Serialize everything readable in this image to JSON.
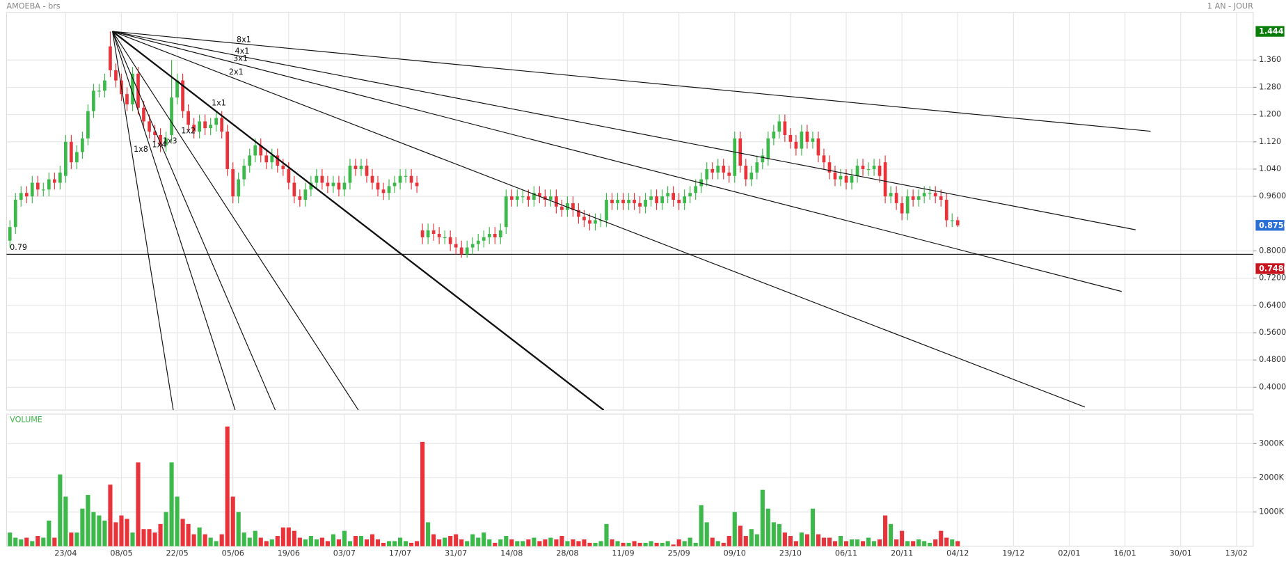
{
  "chart_data": {
    "type": "candlestick",
    "title": "AMOEBA - brs",
    "period": "1 AN - JOUR",
    "up_color": "#3cb94a",
    "down_color": "#e8333a",
    "xlim": [
      -0.6,
      223
    ],
    "xticks": [
      {
        "value": 10,
        "label": "23/04"
      },
      {
        "value": 20,
        "label": "08/05"
      },
      {
        "value": 30,
        "label": "22/05"
      },
      {
        "value": 40,
        "label": "05/06"
      },
      {
        "value": 50,
        "label": "19/06"
      },
      {
        "value": 60,
        "label": "03/07"
      },
      {
        "value": 70,
        "label": "17/07"
      },
      {
        "value": 80,
        "label": "31/07"
      },
      {
        "value": 90,
        "label": "14/08"
      },
      {
        "value": 100,
        "label": "28/08"
      },
      {
        "value": 110,
        "label": "11/09"
      },
      {
        "value": 120,
        "label": "25/09"
      },
      {
        "value": 130,
        "label": "09/10"
      },
      {
        "value": 140,
        "label": "23/10"
      },
      {
        "value": 150,
        "label": "06/11"
      },
      {
        "value": 160,
        "label": "20/11"
      },
      {
        "value": 170,
        "label": "04/12"
      },
      {
        "value": 180,
        "label": "19/12"
      },
      {
        "value": 190,
        "label": "02/01"
      },
      {
        "value": 200,
        "label": "16/01"
      },
      {
        "value": 210,
        "label": "30/01"
      },
      {
        "value": 220,
        "label": "13/02"
      }
    ],
    "ylim": [
      0.333,
      1.5
    ],
    "yticks": [
      {
        "value": 1.36,
        "label": "1.360"
      },
      {
        "value": 1.28,
        "label": "1.280"
      },
      {
        "value": 1.2,
        "label": "1.200"
      },
      {
        "value": 1.12,
        "label": "1.120"
      },
      {
        "value": 1.04,
        "label": "1.040"
      },
      {
        "value": 0.96,
        "label": "0.9600"
      },
      {
        "value": 0.8,
        "label": "0.8000"
      },
      {
        "value": 0.72,
        "label": "0.7200"
      },
      {
        "value": 0.64,
        "label": "0.6400"
      },
      {
        "value": 0.56,
        "label": "0.5600"
      },
      {
        "value": 0.48,
        "label": "0.4800"
      },
      {
        "value": 0.4,
        "label": "0.4000"
      }
    ],
    "grid": true,
    "open": [
      0.83,
      0.87,
      0.95,
      0.97,
      0.96,
      1.0,
      0.98,
      0.98,
      1.01,
      1.0,
      1.02,
      1.12,
      1.06,
      1.09,
      1.13,
      1.21,
      1.27,
      1.27,
      1.4,
      1.33,
      1.3,
      1.26,
      1.23,
      1.32,
      1.22,
      1.18,
      1.15,
      1.14,
      1.11,
      1.14,
      1.25,
      1.3,
      1.21,
      1.17,
      1.15,
      1.18,
      1.16,
      1.17,
      1.19,
      1.15,
      1.04,
      0.96,
      1.01,
      1.05,
      1.08,
      1.11,
      1.08,
      1.06,
      1.08,
      1.05,
      1.04,
      1.0,
      0.96,
      0.95,
      0.98,
      1.0,
      1.02,
      1.0,
      0.99,
      1.0,
      0.98,
      1.0,
      1.05,
      1.04,
      1.05,
      1.02,
      1.0,
      0.98,
      0.97,
      0.99,
      1.0,
      1.02,
      1.02,
      1.0,
      0.86,
      0.84,
      0.86,
      0.85,
      0.84,
      0.84,
      0.82,
      0.81,
      0.79,
      0.81,
      0.82,
      0.83,
      0.84,
      0.85,
      0.84,
      0.87,
      0.96,
      0.95,
      0.96,
      0.96,
      0.95,
      0.97,
      0.96,
      0.95,
      0.96,
      0.93,
      0.92,
      0.94,
      0.92,
      0.9,
      0.89,
      0.88,
      0.89,
      0.89,
      0.95,
      0.94,
      0.95,
      0.94,
      0.95,
      0.94,
      0.93,
      0.95,
      0.96,
      0.94,
      0.96,
      0.97,
      0.95,
      0.94,
      0.96,
      0.97,
      0.99,
      1.01,
      1.04,
      1.03,
      1.05,
      1.03,
      1.02,
      1.13,
      1.05,
      1.01,
      1.03,
      1.06,
      1.07,
      1.13,
      1.15,
      1.18,
      1.14,
      1.12,
      1.1,
      1.15,
      1.12,
      1.13,
      1.08,
      1.06,
      1.03,
      1.01,
      1.02,
      1.0,
      1.02,
      1.05,
      1.04,
      1.04,
      1.05,
      1.06,
      0.96,
      0.97,
      0.94,
      0.91,
      0.96,
      0.95,
      0.96,
      0.97,
      0.97,
      0.96,
      0.95,
      0.89,
      0.89
    ],
    "high": [
      0.89,
      0.97,
      0.99,
      0.99,
      1.02,
      1.02,
      1.0,
      1.03,
      1.03,
      1.05,
      1.14,
      1.14,
      1.11,
      1.15,
      1.23,
      1.29,
      1.29,
      1.32,
      1.444,
      1.35,
      1.32,
      1.28,
      1.34,
      1.34,
      1.24,
      1.2,
      1.17,
      1.16,
      1.15,
      1.36,
      1.32,
      1.32,
      1.23,
      1.19,
      1.2,
      1.2,
      1.19,
      1.21,
      1.21,
      1.17,
      1.06,
      1.03,
      1.07,
      1.1,
      1.13,
      1.13,
      1.1,
      1.1,
      1.1,
      1.07,
      1.06,
      1.02,
      0.98,
      1.0,
      1.02,
      1.04,
      1.04,
      1.02,
      1.02,
      1.02,
      1.02,
      1.07,
      1.07,
      1.07,
      1.07,
      1.04,
      1.02,
      1.0,
      1.01,
      1.02,
      1.04,
      1.04,
      1.04,
      1.02,
      0.88,
      0.88,
      0.88,
      0.87,
      0.86,
      0.86,
      0.84,
      0.83,
      0.83,
      0.84,
      0.85,
      0.86,
      0.87,
      0.87,
      0.88,
      0.98,
      0.98,
      0.98,
      0.98,
      0.98,
      0.99,
      0.99,
      0.98,
      0.98,
      0.98,
      0.95,
      0.96,
      0.96,
      0.94,
      0.92,
      0.91,
      0.91,
      0.91,
      0.97,
      0.97,
      0.97,
      0.97,
      0.97,
      0.97,
      0.96,
      0.97,
      0.98,
      0.98,
      0.98,
      0.99,
      0.99,
      0.97,
      0.98,
      0.99,
      1.01,
      1.03,
      1.06,
      1.06,
      1.07,
      1.07,
      1.05,
      1.15,
      1.15,
      1.07,
      1.05,
      1.08,
      1.1,
      1.15,
      1.17,
      1.2,
      1.2,
      1.16,
      1.14,
      1.17,
      1.17,
      1.15,
      1.15,
      1.1,
      1.08,
      1.05,
      1.04,
      1.04,
      1.04,
      1.07,
      1.07,
      1.06,
      1.07,
      1.07,
      1.08,
      0.99,
      0.99,
      0.96,
      0.98,
      0.98,
      0.98,
      0.99,
      0.99,
      0.99,
      0.98,
      0.97,
      0.91,
      0.9
    ],
    "low": [
      0.81,
      0.85,
      0.93,
      0.94,
      0.94,
      0.96,
      0.96,
      0.96,
      0.98,
      0.98,
      1.0,
      1.04,
      1.04,
      1.07,
      1.11,
      1.19,
      1.25,
      1.25,
      1.31,
      1.28,
      1.24,
      1.21,
      1.21,
      1.2,
      1.16,
      1.13,
      1.12,
      1.09,
      1.09,
      1.12,
      1.23,
      1.19,
      1.15,
      1.13,
      1.13,
      1.14,
      1.14,
      1.15,
      1.13,
      1.02,
      0.94,
      0.94,
      0.99,
      1.03,
      1.06,
      1.06,
      1.04,
      1.04,
      1.03,
      1.02,
      0.98,
      0.94,
      0.93,
      0.93,
      0.96,
      0.98,
      0.98,
      0.97,
      0.97,
      0.96,
      0.96,
      0.98,
      1.02,
      1.02,
      1.0,
      0.98,
      0.96,
      0.95,
      0.95,
      0.97,
      0.98,
      1.0,
      0.98,
      0.97,
      0.82,
      0.82,
      0.83,
      0.82,
      0.82,
      0.8,
      0.79,
      0.78,
      0.78,
      0.79,
      0.8,
      0.81,
      0.82,
      0.82,
      0.82,
      0.85,
      0.93,
      0.93,
      0.94,
      0.93,
      0.93,
      0.94,
      0.93,
      0.93,
      0.91,
      0.9,
      0.9,
      0.9,
      0.88,
      0.87,
      0.86,
      0.86,
      0.87,
      0.87,
      0.92,
      0.92,
      0.92,
      0.92,
      0.92,
      0.91,
      0.91,
      0.93,
      0.92,
      0.92,
      0.94,
      0.93,
      0.92,
      0.92,
      0.94,
      0.95,
      0.97,
      0.99,
      1.01,
      1.01,
      1.01,
      1.0,
      1.0,
      1.03,
      0.99,
      0.99,
      1.01,
      1.04,
      1.05,
      1.11,
      1.13,
      1.12,
      1.1,
      1.08,
      1.08,
      1.1,
      1.1,
      1.06,
      1.04,
      1.01,
      0.99,
      0.99,
      0.98,
      0.98,
      1.0,
      1.02,
      1.02,
      1.02,
      1.0,
      0.94,
      0.94,
      0.92,
      0.89,
      0.89,
      0.93,
      0.93,
      0.94,
      0.95,
      0.94,
      0.93,
      0.87,
      0.87,
      0.87
    ],
    "close": [
      0.87,
      0.95,
      0.97,
      0.96,
      1.0,
      0.98,
      0.98,
      1.01,
      1.0,
      1.03,
      1.12,
      1.06,
      1.09,
      1.13,
      1.21,
      1.27,
      1.27,
      1.3,
      1.33,
      1.3,
      1.26,
      1.23,
      1.32,
      1.22,
      1.18,
      1.15,
      1.14,
      1.11,
      1.13,
      1.25,
      1.3,
      1.21,
      1.17,
      1.15,
      1.18,
      1.16,
      1.17,
      1.19,
      1.15,
      1.04,
      0.96,
      1.01,
      1.05,
      1.08,
      1.11,
      1.08,
      1.06,
      1.08,
      1.05,
      1.04,
      1.0,
      0.96,
      0.95,
      0.98,
      1.0,
      1.02,
      1.0,
      0.99,
      1.0,
      0.98,
      1.0,
      1.05,
      1.04,
      1.05,
      1.02,
      1.0,
      0.98,
      0.97,
      0.99,
      1.0,
      1.02,
      1.02,
      1.0,
      0.99,
      0.84,
      0.86,
      0.85,
      0.84,
      0.84,
      0.82,
      0.81,
      0.79,
      0.81,
      0.82,
      0.83,
      0.84,
      0.85,
      0.84,
      0.86,
      0.96,
      0.95,
      0.96,
      0.96,
      0.95,
      0.97,
      0.96,
      0.95,
      0.96,
      0.93,
      0.92,
      0.94,
      0.92,
      0.9,
      0.89,
      0.88,
      0.89,
      0.89,
      0.95,
      0.94,
      0.95,
      0.94,
      0.95,
      0.94,
      0.93,
      0.95,
      0.96,
      0.94,
      0.96,
      0.97,
      0.95,
      0.94,
      0.96,
      0.97,
      0.99,
      1.01,
      1.04,
      1.03,
      1.05,
      1.03,
      1.02,
      1.13,
      1.05,
      1.01,
      1.03,
      1.06,
      1.08,
      1.13,
      1.15,
      1.18,
      1.14,
      1.12,
      1.1,
      1.15,
      1.12,
      1.13,
      1.08,
      1.06,
      1.03,
      1.01,
      1.02,
      1.0,
      1.02,
      1.05,
      1.04,
      1.04,
      1.05,
      1.02,
      0.96,
      0.97,
      0.94,
      0.91,
      0.96,
      0.95,
      0.96,
      0.97,
      0.97,
      0.96,
      0.95,
      0.89,
      0.89,
      0.875
    ],
    "hline": 0.79,
    "markers": [
      {
        "value": 1.444,
        "color": "#0a7d0a"
      },
      {
        "value": 0.875,
        "label": "0.8750",
        "color": "#2a6fd6"
      },
      {
        "value": 0.748,
        "label": "0.7480",
        "color": "#c8141e"
      }
    ],
    "fan": {
      "origin": {
        "x": 18.4,
        "y": 1.444
      },
      "lines": [
        {
          "label": "8x1",
          "x": 204.6,
          "y": 1.151
        },
        {
          "label": "4x1",
          "x": 201.9,
          "y": 0.862
        },
        {
          "label": "3x1",
          "x": 199.4,
          "y": 0.681
        },
        {
          "label": "2x1",
          "x": 192.8,
          "y": 0.342
        },
        {
          "label": "1x1",
          "x": 106.5,
          "y": 0.333,
          "width": 2
        },
        {
          "label": "1x2",
          "x": 62.5,
          "y": 0.333
        },
        {
          "label": "1x3",
          "x": 47.6,
          "y": 0.333
        },
        {
          "label": "1x4",
          "x": 40.4,
          "y": 0.333
        },
        {
          "label": "1x8",
          "x": 29.3,
          "y": 0.333
        }
      ]
    },
    "volume_title": "VOLUME",
    "volume_ylim": [
      0,
      3860
    ],
    "volume_yticks": [
      {
        "value": 1000,
        "label": "1000K"
      },
      {
        "value": 2000,
        "label": "2000K"
      },
      {
        "value": 3000,
        "label": "3000K"
      }
    ],
    "volume": [
      400,
      250,
      200,
      250,
      150,
      300,
      250,
      750,
      250,
      2100,
      1450,
      400,
      400,
      1100,
      1500,
      1000,
      900,
      750,
      1800,
      700,
      900,
      800,
      400,
      2450,
      500,
      500,
      400,
      650,
      1000,
      2450,
      1450,
      800,
      650,
      350,
      550,
      350,
      250,
      150,
      350,
      3500,
      1450,
      1000,
      400,
      250,
      450,
      250,
      150,
      200,
      300,
      550,
      550,
      450,
      250,
      200,
      300,
      200,
      250,
      150,
      350,
      200,
      450,
      150,
      300,
      300,
      200,
      350,
      200,
      100,
      150,
      150,
      250,
      150,
      100,
      150,
      3050,
      700,
      350,
      200,
      250,
      300,
      350,
      200,
      150,
      350,
      250,
      400,
      200,
      100,
      200,
      300,
      200,
      150,
      150,
      200,
      250,
      150,
      200,
      250,
      200,
      300,
      150,
      200,
      150,
      200,
      100,
      100,
      150,
      650,
      200,
      150,
      100,
      100,
      150,
      100,
      100,
      150,
      100,
      100,
      150,
      50,
      200,
      150,
      250,
      100,
      1200,
      700,
      250,
      150,
      100,
      300,
      1000,
      600,
      300,
      500,
      350,
      1650,
      1100,
      700,
      650,
      400,
      300,
      150,
      400,
      350,
      1100,
      350,
      250,
      250,
      150,
      300,
      150,
      200,
      200,
      150,
      250,
      150,
      200,
      900,
      650,
      200,
      450,
      150,
      150,
      200,
      150,
      100,
      200,
      450,
      250,
      200,
      150
    ]
  }
}
